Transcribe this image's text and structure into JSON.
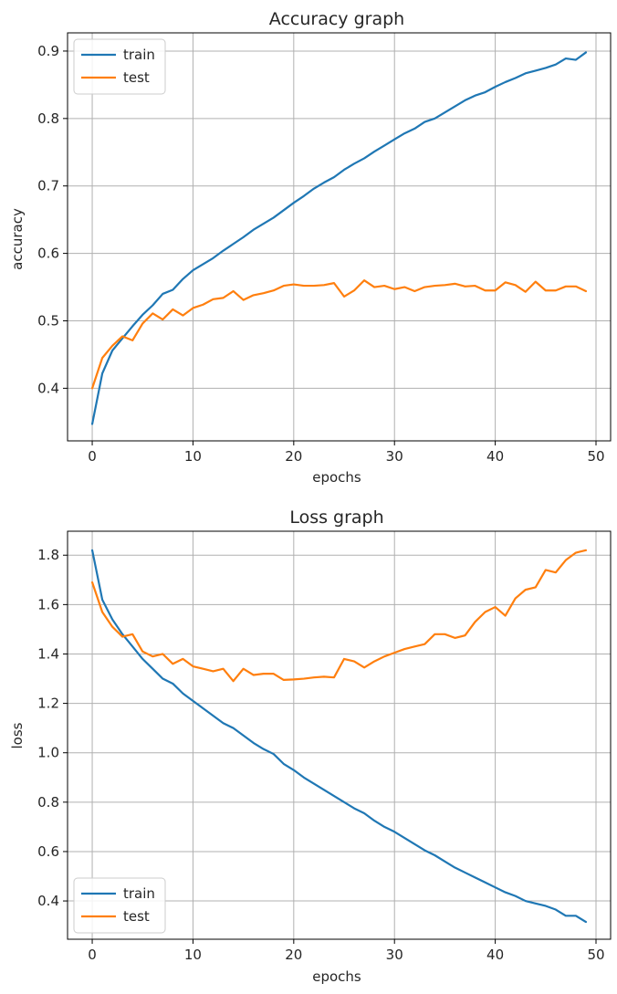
{
  "chart_data": [
    {
      "type": "line",
      "title": "Accuracy graph",
      "xlabel": "epochs",
      "ylabel": "accuracy",
      "xlim": [
        -2.45,
        51.45
      ],
      "ylim": [
        0.322,
        0.927
      ],
      "xticks": [
        0,
        10,
        20,
        30,
        40,
        50
      ],
      "yticks": [
        0.4,
        0.5,
        0.6,
        0.7,
        0.8,
        0.9
      ],
      "ytick_decimals": 1,
      "grid": true,
      "legend_position": "upper-left",
      "x": [
        0,
        1,
        2,
        3,
        4,
        5,
        6,
        7,
        8,
        9,
        10,
        11,
        12,
        13,
        14,
        15,
        16,
        17,
        18,
        19,
        20,
        21,
        22,
        23,
        24,
        25,
        26,
        27,
        28,
        29,
        30,
        31,
        32,
        33,
        34,
        35,
        36,
        37,
        38,
        39,
        40,
        41,
        42,
        43,
        44,
        45,
        46,
        47,
        48,
        49
      ],
      "series": [
        {
          "name": "train",
          "color": "#1f77b4",
          "values": [
            0.347,
            0.422,
            0.456,
            0.474,
            0.492,
            0.509,
            0.523,
            0.54,
            0.546,
            0.562,
            0.575,
            0.584,
            0.593,
            0.604,
            0.614,
            0.624,
            0.635,
            0.644,
            0.653,
            0.664,
            0.675,
            0.685,
            0.696,
            0.705,
            0.713,
            0.724,
            0.733,
            0.741,
            0.751,
            0.76,
            0.769,
            0.778,
            0.785,
            0.795,
            0.8,
            0.809,
            0.818,
            0.827,
            0.834,
            0.839,
            0.847,
            0.854,
            0.86,
            0.867,
            0.871,
            0.875,
            0.88,
            0.889,
            0.887,
            0.898
          ]
        },
        {
          "name": "test",
          "color": "#ff7f0e",
          "values": [
            0.4,
            0.445,
            0.463,
            0.477,
            0.471,
            0.496,
            0.511,
            0.502,
            0.517,
            0.508,
            0.519,
            0.524,
            0.532,
            0.534,
            0.544,
            0.531,
            0.538,
            0.541,
            0.545,
            0.552,
            0.554,
            0.552,
            0.552,
            0.553,
            0.556,
            0.536,
            0.545,
            0.56,
            0.55,
            0.552,
            0.547,
            0.55,
            0.544,
            0.55,
            0.552,
            0.553,
            0.555,
            0.551,
            0.552,
            0.545,
            0.545,
            0.557,
            0.553,
            0.543,
            0.558,
            0.545,
            0.545,
            0.551,
            0.551,
            0.544
          ]
        }
      ]
    },
    {
      "type": "line",
      "title": "Loss graph",
      "xlabel": "epochs",
      "ylabel": "loss",
      "xlim": [
        -2.45,
        51.45
      ],
      "ylim": [
        0.245,
        1.897
      ],
      "xticks": [
        0,
        10,
        20,
        30,
        40,
        50
      ],
      "yticks": [
        0.4,
        0.6,
        0.8,
        1.0,
        1.2,
        1.4,
        1.6,
        1.8
      ],
      "ytick_decimals": 1,
      "grid": true,
      "legend_position": "lower-left",
      "x": [
        0,
        1,
        2,
        3,
        4,
        5,
        6,
        7,
        8,
        9,
        10,
        11,
        12,
        13,
        14,
        15,
        16,
        17,
        18,
        19,
        20,
        21,
        22,
        23,
        24,
        25,
        26,
        27,
        28,
        29,
        30,
        31,
        32,
        33,
        34,
        35,
        36,
        37,
        38,
        39,
        40,
        41,
        42,
        43,
        44,
        45,
        46,
        47,
        48,
        49
      ],
      "series": [
        {
          "name": "train",
          "color": "#1f77b4",
          "values": [
            1.82,
            1.62,
            1.54,
            1.48,
            1.43,
            1.38,
            1.34,
            1.3,
            1.28,
            1.24,
            1.21,
            1.18,
            1.15,
            1.12,
            1.1,
            1.07,
            1.04,
            1.015,
            0.995,
            0.955,
            0.93,
            0.9,
            0.875,
            0.85,
            0.825,
            0.8,
            0.775,
            0.755,
            0.725,
            0.7,
            0.68,
            0.655,
            0.63,
            0.605,
            0.585,
            0.56,
            0.535,
            0.515,
            0.495,
            0.475,
            0.455,
            0.435,
            0.42,
            0.4,
            0.39,
            0.38,
            0.365,
            0.34,
            0.34,
            0.315
          ]
        },
        {
          "name": "test",
          "color": "#ff7f0e",
          "values": [
            1.69,
            1.57,
            1.51,
            1.47,
            1.48,
            1.41,
            1.39,
            1.4,
            1.36,
            1.38,
            1.35,
            1.34,
            1.33,
            1.34,
            1.29,
            1.34,
            1.315,
            1.32,
            1.32,
            1.295,
            1.297,
            1.3,
            1.305,
            1.308,
            1.305,
            1.38,
            1.37,
            1.345,
            1.37,
            1.39,
            1.405,
            1.42,
            1.43,
            1.44,
            1.48,
            1.48,
            1.465,
            1.475,
            1.53,
            1.57,
            1.59,
            1.555,
            1.625,
            1.66,
            1.67,
            1.74,
            1.73,
            1.78,
            1.81,
            1.82
          ]
        }
      ]
    }
  ]
}
